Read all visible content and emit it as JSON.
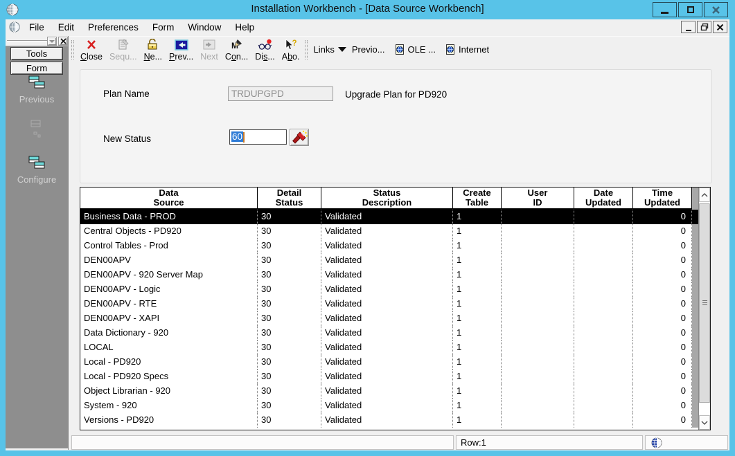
{
  "window": {
    "title": "Installation Workbench - [Data Source Workbench]",
    "controls": [
      {
        "name": "minimize-button",
        "icon": "minimize-icon"
      },
      {
        "name": "maximize-button",
        "icon": "maximize-icon"
      },
      {
        "name": "close-button",
        "icon": "close-icon"
      }
    ]
  },
  "menu_bar": {
    "items": [
      "File",
      "Edit",
      "Preferences",
      "Form",
      "Window",
      "Help"
    ],
    "mdi_controls": [
      {
        "name": "mdi-minimize-button",
        "icon": "minimize-icon"
      },
      {
        "name": "mdi-restore-button",
        "icon": "restore-icon"
      },
      {
        "name": "mdi-close-button",
        "icon": "close-icon"
      }
    ]
  },
  "toolbar": {
    "buttons": [
      {
        "label": "Close",
        "mnemonic": 0,
        "icon": "close-x-icon",
        "disabled": false
      },
      {
        "label": "Sequ...",
        "mnemonic": -1,
        "icon": "sequence-icon",
        "disabled": true
      },
      {
        "label": "Ne...",
        "mnemonic": 0,
        "icon": "new-icon",
        "disabled": false
      },
      {
        "label": "Prev...",
        "mnemonic": 0,
        "icon": "previous-icon",
        "disabled": false
      },
      {
        "label": "Next",
        "mnemonic": -1,
        "icon": "next-arrow-icon",
        "disabled": true
      },
      {
        "label": "Con...",
        "mnemonic": 1,
        "icon": "configure-pen-icon",
        "disabled": false
      },
      {
        "label": "Dis...",
        "mnemonic": 2,
        "icon": "display-glasses-icon",
        "disabled": false
      },
      {
        "label": "Abo.",
        "mnemonic": 1,
        "icon": "about-cursor-icon",
        "disabled": false
      }
    ],
    "links_label": "Links",
    "link_items": [
      {
        "label": "Previo...",
        "icon": ""
      },
      {
        "label": "OLE ...",
        "icon": "ole-doc-icon"
      },
      {
        "label": "Internet",
        "icon": "internet-doc-icon"
      }
    ]
  },
  "sidebar": {
    "tabs": [
      {
        "label": "Tools"
      },
      {
        "label": "Form"
      }
    ],
    "actions": [
      {
        "label": "Previous",
        "icon": "windows-stack-icon"
      },
      {
        "label": "Configure",
        "icon": "windows-stack-icon"
      }
    ]
  },
  "form": {
    "plan_name_label": "Plan Name",
    "plan_name_value": "TRDUPGPD",
    "plan_description": "Upgrade Plan for PD920",
    "new_status_label": "New Status",
    "new_status_value": "60"
  },
  "grid": {
    "columns": [
      [
        "Data",
        "Source"
      ],
      [
        "Detail",
        "Status"
      ],
      [
        "Status",
        "Description"
      ],
      [
        "Create",
        "Table"
      ],
      [
        "User",
        "ID"
      ],
      [
        "Date",
        "Updated"
      ],
      [
        "Time",
        "Updated"
      ]
    ],
    "selected_row": 0,
    "rows": [
      [
        "Business Data - PROD",
        "30",
        "Validated",
        "1",
        "",
        "",
        "0"
      ],
      [
        "Central Objects - PD920",
        "30",
        "Validated",
        "1",
        "",
        "",
        "0"
      ],
      [
        "Control Tables - Prod",
        "30",
        "Validated",
        "1",
        "",
        "",
        "0"
      ],
      [
        "DEN00APV",
        "30",
        "Validated",
        "1",
        "",
        "",
        "0"
      ],
      [
        "DEN00APV - 920 Server Map",
        "30",
        "Validated",
        "1",
        "",
        "",
        "0"
      ],
      [
        "DEN00APV - Logic",
        "30",
        "Validated",
        "1",
        "",
        "",
        "0"
      ],
      [
        "DEN00APV - RTE",
        "30",
        "Validated",
        "1",
        "",
        "",
        "0"
      ],
      [
        "DEN00APV - XAPI",
        "30",
        "Validated",
        "1",
        "",
        "",
        "0"
      ],
      [
        "Data Dictionary - 920",
        "30",
        "Validated",
        "1",
        "",
        "",
        "0"
      ],
      [
        "LOCAL",
        "30",
        "Validated",
        "1",
        "",
        "",
        "0"
      ],
      [
        "Local - PD920",
        "30",
        "Validated",
        "1",
        "",
        "",
        "0"
      ],
      [
        "Local - PD920 Specs",
        "30",
        "Validated",
        "1",
        "",
        "",
        "0"
      ],
      [
        "Object Librarian - 920",
        "30",
        "Validated",
        "1",
        "",
        "",
        "0"
      ],
      [
        "System - 920",
        "30",
        "Validated",
        "1",
        "",
        "",
        "0"
      ],
      [
        "Versions - PD920",
        "30",
        "Validated",
        "1",
        "",
        "",
        "0"
      ]
    ]
  },
  "status_bar": {
    "row_indicator": "Row:1",
    "globe": "globe-icon"
  },
  "colors": {
    "titlebar": "#58c3e8",
    "sidebar": "#8e8e8e",
    "selection": "#2e7bd6",
    "selected_row_bg": "#000000",
    "grid_filler": "#a8a8a8"
  }
}
